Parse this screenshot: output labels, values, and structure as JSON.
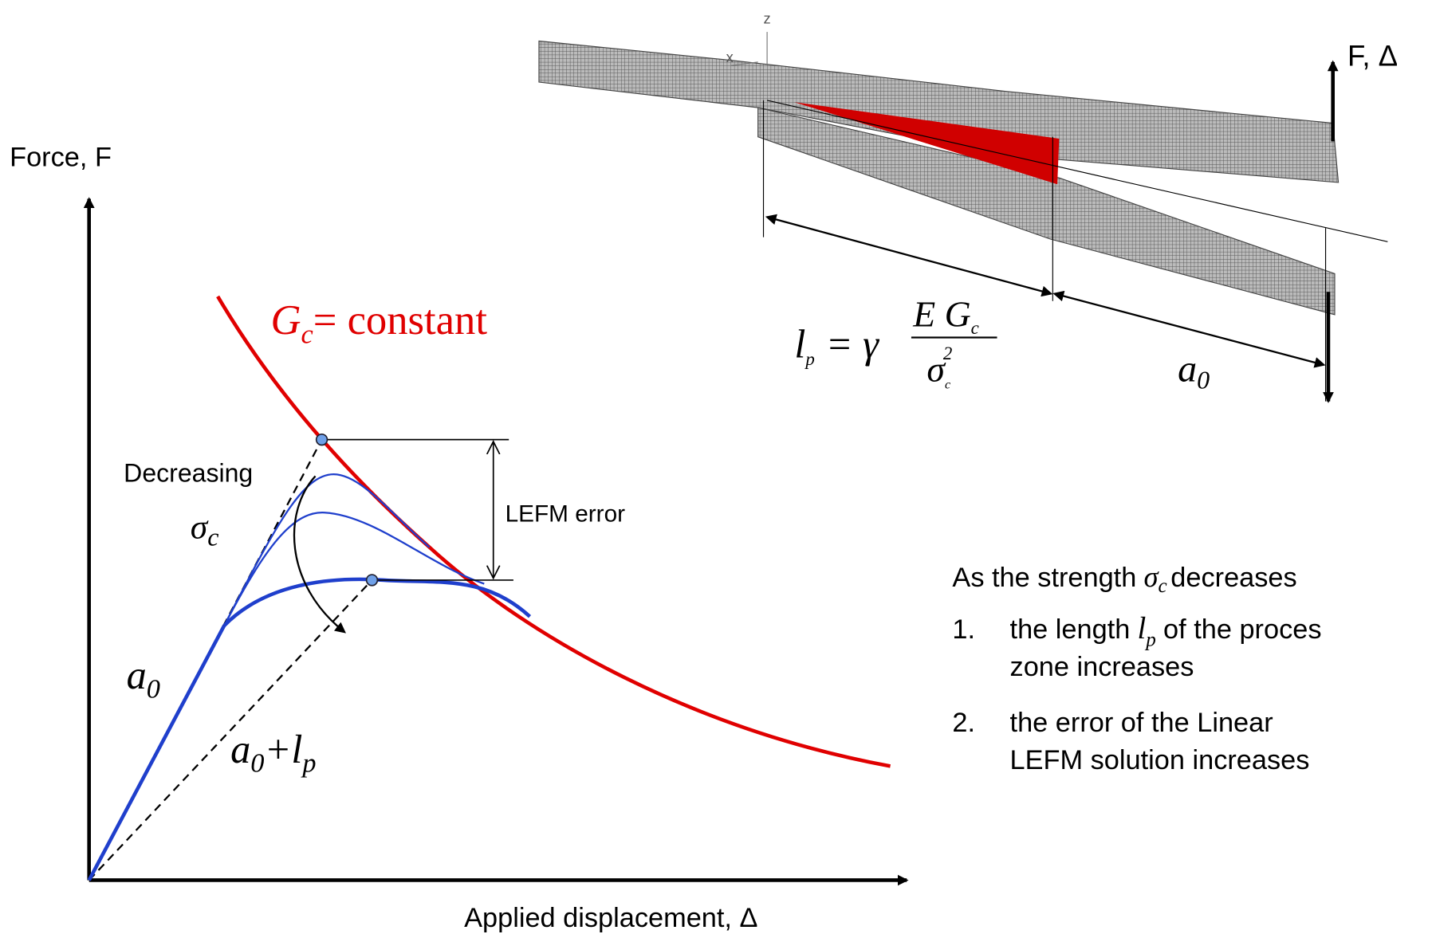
{
  "graph": {
    "y_axis_label": "Force, F",
    "x_axis_label": "Applied displacement, Δ",
    "curve_label": {
      "symbol": "G",
      "subscript": "c",
      "text": "= constant"
    },
    "decreasing": "Decreasing",
    "sigma": {
      "symbol": "σ",
      "subscript": "c"
    },
    "lefm_error": "LEFM error",
    "a0": {
      "symbol": "a",
      "subscript": "0"
    },
    "a0_lp": {
      "symbol": "a",
      "subscript": "0",
      "plus": "+l",
      "subscript2": "p"
    }
  },
  "beam": {
    "z": "z",
    "x": "x",
    "load": "F, Δ",
    "formula": {
      "lhs": "l",
      "lhs_sub": "p",
      "equals": "= γ",
      "numerator": "E G",
      "numerator_sub": "c",
      "denominator": "σ",
      "den_sub": "c",
      "den_sup": "2"
    },
    "a0": {
      "symbol": "a",
      "subscript": "0"
    }
  },
  "notes": {
    "intro": "As the strength",
    "sigma": "σ",
    "sigma_sub": "c",
    "intro_end": "decreases",
    "items": [
      {
        "number": "1.",
        "line1_a": "the length",
        "l": "l",
        "l_sub": "p",
        "line1_b": "of the proces",
        "line2": "zone increases"
      },
      {
        "number": "2.",
        "line1": "the error of the Linear",
        "line2": "LEFM solution increases"
      }
    ]
  }
}
